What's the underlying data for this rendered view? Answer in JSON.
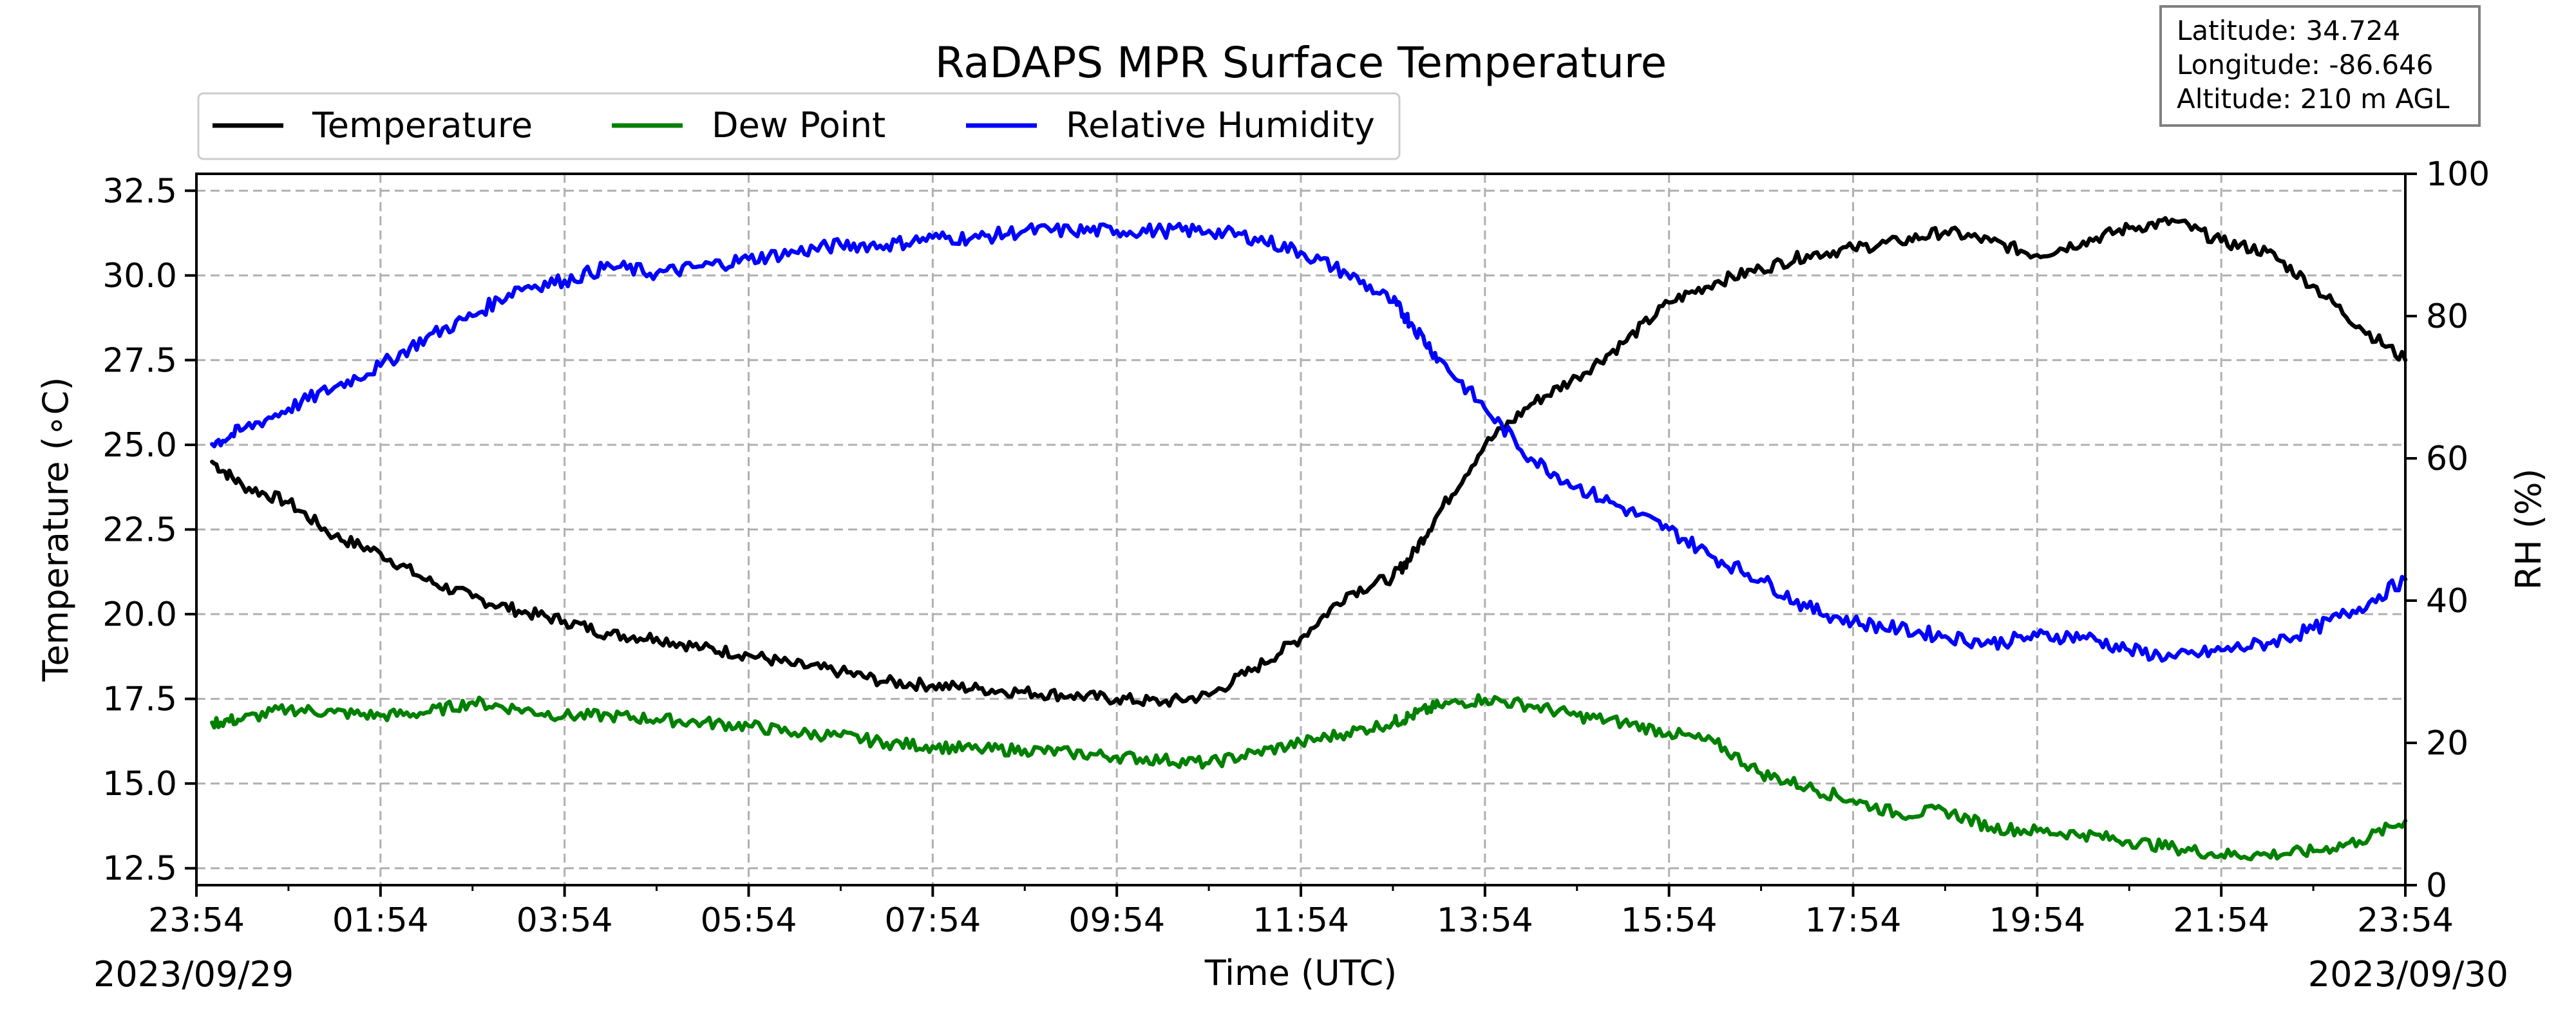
{
  "chart_data": {
    "type": "line",
    "title": "RaDAPS MPR Surface Temperature",
    "xlabel": "Time (UTC)",
    "ylabel_left": "Temperature (∘C)",
    "ylabel_right": "RH (%)",
    "x_ticks": [
      "23:54",
      "01:54",
      "03:54",
      "05:54",
      "07:54",
      "09:54",
      "11:54",
      "13:54",
      "15:54",
      "17:54",
      "19:54",
      "21:54",
      "23:54"
    ],
    "x_start_date": "2023/09/29",
    "x_end_date": "2023/09/30",
    "xlim_hours": [
      0,
      24
    ],
    "ylim_left": [
      12,
      33
    ],
    "yticks_left": [
      "12.5",
      "15.0",
      "17.5",
      "20.0",
      "22.5",
      "25.0",
      "27.5",
      "30.0",
      "32.5"
    ],
    "ylim_right": [
      0,
      100
    ],
    "yticks_right": [
      "0",
      "20",
      "40",
      "60",
      "80",
      "100"
    ],
    "grid": true,
    "legend_position": "top-left",
    "info_box": {
      "latitude": "Latitude: 34.724",
      "longitude": "Longitude: -86.646",
      "altitude": "Altitude: 210 m AGL"
    },
    "series": [
      {
        "name": "Temperature",
        "color": "#000000",
        "axis": "left",
        "x": [
          0.17,
          0.5,
          1.0,
          1.5,
          2.0,
          2.5,
          3.0,
          3.5,
          4.0,
          4.5,
          5.0,
          5.5,
          6.0,
          6.5,
          7.0,
          7.5,
          8.0,
          8.5,
          9.0,
          9.5,
          10.0,
          10.5,
          11.0,
          11.5,
          12.0,
          12.5,
          13.0,
          13.2,
          13.5,
          14.0,
          14.5,
          15.0,
          15.5,
          16.0,
          16.5,
          17.0,
          17.5,
          18.0,
          18.5,
          19.0,
          19.5,
          20.0,
          20.5,
          21.0,
          21.5,
          22.0,
          22.5,
          23.0,
          23.5,
          24.0
        ],
        "y": [
          24.5,
          23.8,
          23.3,
          22.3,
          21.8,
          21.0,
          20.5,
          20.1,
          19.8,
          19.4,
          19.3,
          19.0,
          18.8,
          18.5,
          18.3,
          18.0,
          17.9,
          17.8,
          17.7,
          17.6,
          17.5,
          17.4,
          17.6,
          18.4,
          19.3,
          20.6,
          21.1,
          21.7,
          23.0,
          25.0,
          26.2,
          27.0,
          28.0,
          29.2,
          29.8,
          30.2,
          30.6,
          30.8,
          31.0,
          31.3,
          31.0,
          30.6,
          31.0,
          31.4,
          31.6,
          31.0,
          30.7,
          29.7,
          28.5,
          27.5
        ]
      },
      {
        "name": "Dew Point",
        "color": "#008000",
        "axis": "left",
        "x": [
          0.17,
          0.5,
          1.0,
          1.5,
          2.0,
          2.5,
          3.0,
          3.5,
          4.0,
          4.5,
          5.0,
          5.5,
          6.0,
          6.5,
          7.0,
          7.5,
          8.0,
          8.5,
          9.0,
          9.5,
          10.0,
          10.5,
          11.0,
          11.5,
          12.0,
          12.5,
          13.0,
          13.2,
          13.5,
          14.0,
          14.5,
          15.0,
          15.5,
          16.0,
          16.5,
          17.0,
          17.5,
          18.0,
          18.5,
          19.0,
          19.5,
          20.0,
          20.5,
          21.0,
          21.5,
          22.0,
          22.5,
          23.0,
          23.5,
          24.0
        ],
        "y": [
          16.8,
          16.9,
          17.2,
          17.1,
          17.0,
          17.1,
          17.4,
          17.2,
          17.0,
          17.0,
          16.9,
          16.8,
          16.7,
          16.5,
          16.4,
          16.2,
          16.1,
          16.0,
          16.0,
          15.9,
          15.8,
          15.7,
          15.6,
          15.9,
          16.2,
          16.5,
          16.8,
          17.0,
          17.3,
          17.5,
          17.3,
          17.0,
          16.8,
          16.5,
          16.2,
          15.3,
          14.9,
          14.5,
          14.1,
          14.2,
          13.7,
          13.6,
          13.5,
          13.3,
          13.1,
          12.9,
          12.9,
          13.0,
          13.3,
          13.9
        ]
      },
      {
        "name": "Relative Humidity",
        "color": "#0000ff",
        "axis": "right",
        "x": [
          0.17,
          0.5,
          1.0,
          1.5,
          2.0,
          2.5,
          3.0,
          3.5,
          4.0,
          4.5,
          5.0,
          5.5,
          6.0,
          6.5,
          7.0,
          7.5,
          8.0,
          8.5,
          9.0,
          9.5,
          10.0,
          10.5,
          11.0,
          11.5,
          12.0,
          12.5,
          13.0,
          13.2,
          13.5,
          14.0,
          14.5,
          15.0,
          15.5,
          16.0,
          16.5,
          17.0,
          17.5,
          18.0,
          18.5,
          19.0,
          19.5,
          20.0,
          20.5,
          21.0,
          21.5,
          22.0,
          22.5,
          23.0,
          23.5,
          24.0
        ],
        "y": [
          62,
          64,
          67,
          70,
          73,
          77,
          80,
          84,
          85,
          87,
          86,
          87,
          88,
          89,
          90,
          90,
          91,
          91,
          92,
          92,
          92,
          92,
          92,
          91,
          89,
          86,
          82,
          79,
          74,
          67,
          60,
          56,
          53,
          50,
          46,
          43,
          39,
          37,
          36,
          35,
          34,
          35,
          35,
          33,
          32,
          33,
          34,
          36,
          39,
          43
        ]
      }
    ]
  }
}
